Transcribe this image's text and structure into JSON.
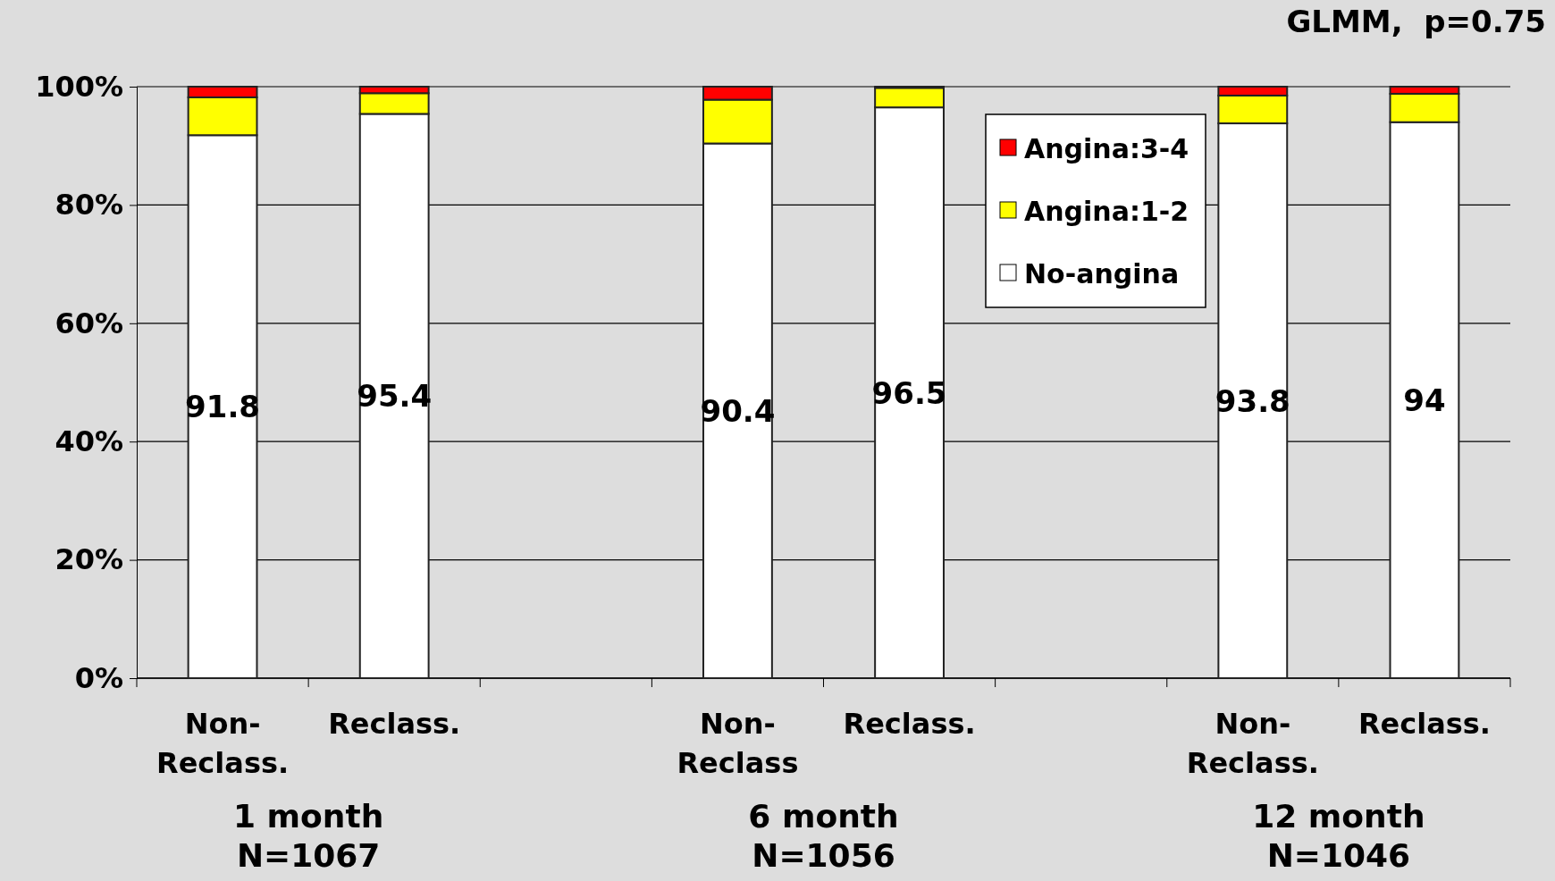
{
  "chart_data": {
    "type": "bar",
    "stacked": true,
    "categories": [
      "Non-\nReclass.",
      "Reclass.",
      null,
      "Non-\nReclass",
      "Reclass.",
      null,
      "Non-\nReclass.",
      "Reclass."
    ],
    "series": [
      {
        "name": "No-angina",
        "color": "#ffffff",
        "values": [
          91.8,
          95.4,
          null,
          90.4,
          96.5,
          null,
          93.8,
          94
        ],
        "value_labels": [
          "91.8",
          "95.4",
          null,
          "90.4",
          "96.5",
          null,
          "93.8",
          "94"
        ]
      },
      {
        "name": "Angina:1-2",
        "color": "#ffff00",
        "values": [
          6.4,
          3.5,
          null,
          7.4,
          3.3,
          null,
          4.7,
          4.8
        ]
      },
      {
        "name": "Angina:3-4",
        "color": "#ff0000",
        "values": [
          1.8,
          1.1,
          null,
          2.2,
          0.2,
          null,
          1.5,
          1.2
        ]
      }
    ],
    "ylim": [
      0,
      100
    ],
    "yticks": [
      {
        "value": 0,
        "label": "0%"
      },
      {
        "value": 20,
        "label": "20%"
      },
      {
        "value": 40,
        "label": "40%"
      },
      {
        "value": 60,
        "label": "60%"
      },
      {
        "value": 80,
        "label": "80%"
      },
      {
        "value": 100,
        "label": "100%"
      }
    ],
    "grid": "y",
    "legend": "top right",
    "annotations": [
      "1 month\nN=1067",
      "6 month\nN=1056",
      "12 month\nN=1046",
      "GLMM,  p=0.75"
    ]
  }
}
